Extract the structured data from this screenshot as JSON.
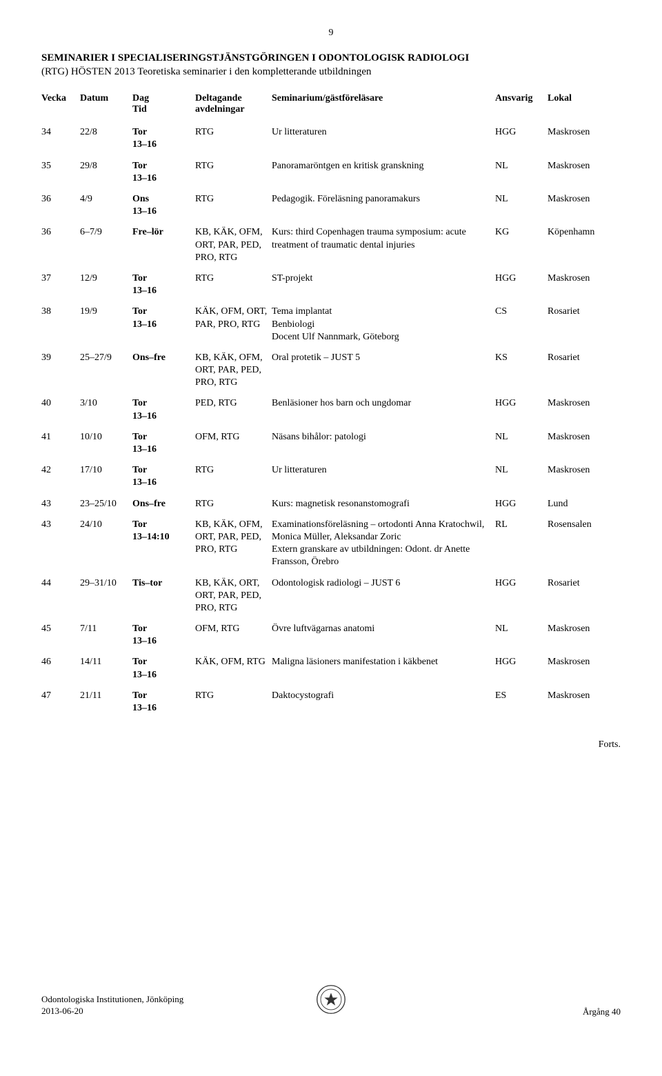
{
  "page_number": "9",
  "title": "SEMINARIER I SPECIALISERINGSTJÄNSTGÖRINGEN I ODONTOLOGISK RADIOLOGI",
  "subtitle": "(RTG) HÖSTEN 2013  Teoretiska seminarier i den kompletterande utbildningen",
  "columns": {
    "vecka": "Vecka",
    "datum": "Datum",
    "dag": "Dag\nTid",
    "avd": "Deltagande\navdelningar",
    "sem": "Seminarium/gästföreläsare",
    "ansvarig": "Ansvarig",
    "lokal": "Lokal"
  },
  "rows": [
    {
      "vecka": "34",
      "datum": "22/8",
      "dag": "Tor\n13–16",
      "avd": "RTG",
      "sem": "Ur litteraturen",
      "ansv": "HGG",
      "lokal": "Maskrosen"
    },
    {
      "vecka": "35",
      "datum": "29/8",
      "dag": "Tor\n13–16",
      "avd": "RTG",
      "sem": "Panoramaröntgen en kritisk granskning",
      "ansv": "NL",
      "lokal": "Maskrosen"
    },
    {
      "vecka": "36",
      "datum": "4/9",
      "dag": "Ons\n13–16",
      "avd": "RTG",
      "sem": "Pedagogik. Föreläsning panoramakurs",
      "ansv": "NL",
      "lokal": "Maskrosen"
    },
    {
      "vecka": "36",
      "datum": "6–7/9",
      "dag": "Fre–lör",
      "avd": "KB, KÄK, OFM, ORT, PAR, PED, PRO, RTG",
      "sem": "Kurs: third Copenhagen trauma symposium: acute treatment of traumatic dental injuries",
      "ansv": "KG",
      "lokal": "Köpenhamn"
    },
    {
      "vecka": "37",
      "datum": "12/9",
      "dag": "Tor\n13–16",
      "avd": "RTG",
      "sem": "ST-projekt",
      "ansv": "HGG",
      "lokal": "Maskrosen"
    },
    {
      "vecka": "38",
      "datum": "19/9",
      "dag": "Tor\n13–16",
      "avd": "KÄK, OFM, ORT, PAR, PRO, RTG",
      "sem": "Tema implantat\nBenbiologi\nDocent Ulf Nannmark, Göteborg",
      "ansv": "CS",
      "lokal": "Rosariet"
    },
    {
      "vecka": "39",
      "datum": "25–27/9",
      "dag": "Ons–fre",
      "avd": "KB, KÄK, OFM, ORT, PAR, PED, PRO, RTG",
      "sem": "Oral protetik – JUST 5",
      "ansv": "KS",
      "lokal": "Rosariet"
    },
    {
      "vecka": "40",
      "datum": "3/10",
      "dag": "Tor\n13–16",
      "avd": "PED, RTG",
      "sem": "Benläsioner hos barn och ungdomar",
      "ansv": "HGG",
      "lokal": "Maskrosen"
    },
    {
      "vecka": "41",
      "datum": "10/10",
      "dag": "Tor\n13–16",
      "avd": "OFM, RTG",
      "sem": "Näsans bihålor: patologi",
      "ansv": "NL",
      "lokal": "Maskrosen"
    },
    {
      "vecka": "42",
      "datum": "17/10",
      "dag": "Tor\n13–16",
      "avd": "RTG",
      "sem": "Ur litteraturen",
      "ansv": "NL",
      "lokal": "Maskrosen"
    },
    {
      "vecka": "43",
      "datum": "23–25/10",
      "dag": "Ons–fre",
      "avd": "RTG",
      "sem": "Kurs: magnetisk resonanstomografi",
      "ansv": "HGG",
      "lokal": "Lund"
    },
    {
      "vecka": "43",
      "datum": "24/10",
      "dag": "Tor\n13–14:10",
      "avd": "KB, KÄK, OFM, ORT, PAR, PED, PRO, RTG",
      "sem": "Examinationsföreläsning – ortodonti Anna Kratochwil, Monica Müller, Aleksandar Zoric\nExtern granskare av utbildningen: Odont. dr Anette Fransson, Örebro",
      "ansv": "RL",
      "lokal": "Rosensalen"
    },
    {
      "vecka": "44",
      "datum": "29–31/10",
      "dag": "Tis–tor",
      "avd": "KB, KÄK, ORT, ORT, PAR, PED, PRO, RTG",
      "sem": "Odontologisk radiologi – JUST 6",
      "ansv": "HGG",
      "lokal": "Rosariet"
    },
    {
      "vecka": "45",
      "datum": "7/11",
      "dag": "Tor\n13–16",
      "avd": "OFM, RTG",
      "sem": "Övre luftvägarnas anatomi",
      "ansv": "NL",
      "lokal": "Maskrosen"
    },
    {
      "vecka": "46",
      "datum": "14/11",
      "dag": "Tor\n13–16",
      "avd": "KÄK, OFM, RTG",
      "sem": "Maligna läsioners manifestation i käkbenet",
      "ansv": "HGG",
      "lokal": "Maskrosen"
    },
    {
      "vecka": "47",
      "datum": "21/11",
      "dag": "Tor\n13–16",
      "avd": "RTG",
      "sem": "Daktocystografi",
      "ansv": "ES",
      "lokal": "Maskrosen"
    }
  ],
  "forts": "Forts.",
  "footer": {
    "inst": "Odontologiska Institutionen, Jönköping",
    "date": "2013-06-20",
    "argang": "Årgång 40"
  }
}
